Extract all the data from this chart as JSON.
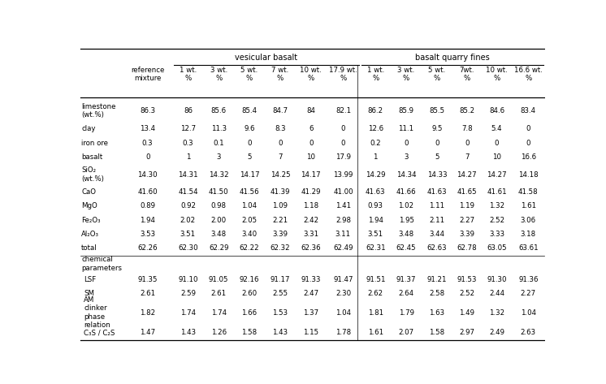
{
  "title_left": "vesicular basalt",
  "title_right": "basalt quarry fines",
  "col_headers": [
    "reference\nmixture",
    "1 wt.\n%",
    "3 wt.\n%",
    "5 wt.\n%",
    "7 wt.\n%",
    "10 wt.\n%",
    "17.9 wt.\n%",
    "1 wt.\n%",
    "3 wt.\n%",
    "5 wt.\n%",
    "7wt.\n%",
    "10 wt.\n%",
    "16.6 wt.\n%"
  ],
  "row_labels": [
    "limestone\n(wt.%)",
    "clay",
    "iron ore",
    "basalt",
    "SiO₂\n(wt.%)",
    "CaO",
    "MgO",
    "Fe₂O₃",
    "Al₂O₃",
    "total",
    "chemical\nparameters",
    "LSF",
    "SM",
    "AM\nclinker\nphase\nrelation",
    "C₃S / C₂S"
  ],
  "table_data": [
    [
      "86.3",
      "86",
      "85.6",
      "85.4",
      "84.7",
      "84",
      "82.1",
      "86.2",
      "85.9",
      "85.5",
      "85.2",
      "84.6",
      "83.4"
    ],
    [
      "13.4",
      "12.7",
      "11.3",
      "9.6",
      "8.3",
      "6",
      "0",
      "12.6",
      "11.1",
      "9.5",
      "7.8",
      "5.4",
      "0"
    ],
    [
      "0.3",
      "0.3",
      "0.1",
      "0",
      "0",
      "0",
      "0",
      "0.2",
      "0",
      "0",
      "0",
      "0",
      "0"
    ],
    [
      "0",
      "1",
      "3",
      "5",
      "7",
      "10",
      "17.9",
      "1",
      "3",
      "5",
      "7",
      "10",
      "16.6"
    ],
    [
      "14.30",
      "14.31",
      "14.32",
      "14.17",
      "14.25",
      "14.17",
      "13.99",
      "14.29",
      "14.34",
      "14.33",
      "14.27",
      "14.27",
      "14.18"
    ],
    [
      "41.60",
      "41.54",
      "41.50",
      "41.56",
      "41.39",
      "41.29",
      "41.00",
      "41.63",
      "41.66",
      "41.63",
      "41.65",
      "41.61",
      "41.58"
    ],
    [
      "0.89",
      "0.92",
      "0.98",
      "1.04",
      "1.09",
      "1.18",
      "1.41",
      "0.93",
      "1.02",
      "1.11",
      "1.19",
      "1.32",
      "1.61"
    ],
    [
      "1.94",
      "2.02",
      "2.00",
      "2.05",
      "2.21",
      "2.42",
      "2.98",
      "1.94",
      "1.95",
      "2.11",
      "2.27",
      "2.52",
      "3.06"
    ],
    [
      "3.53",
      "3.51",
      "3.48",
      "3.40",
      "3.39",
      "3.31",
      "3.11",
      "3.51",
      "3.48",
      "3.44",
      "3.39",
      "3.33",
      "3.18"
    ],
    [
      "62.26",
      "62.30",
      "62.29",
      "62.22",
      "62.32",
      "62.36",
      "62.49",
      "62.31",
      "62.45",
      "62.63",
      "62.78",
      "63.05",
      "63.61"
    ],
    [
      "",
      "",
      "",
      "",
      "",
      "",
      "",
      "",
      "",
      "",
      "",
      "",
      ""
    ],
    [
      "91.35",
      "91.10",
      "91.05",
      "92.16",
      "91.17",
      "91.33",
      "91.47",
      "91.51",
      "91.37",
      "91.21",
      "91.53",
      "91.30",
      "91.36"
    ],
    [
      "2.61",
      "2.59",
      "2.61",
      "2.60",
      "2.55",
      "2.47",
      "2.30",
      "2.62",
      "2.64",
      "2.58",
      "2.52",
      "2.44",
      "2.27"
    ],
    [
      "1.82",
      "1.74",
      "1.74",
      "1.66",
      "1.53",
      "1.37",
      "1.04",
      "1.81",
      "1.79",
      "1.63",
      "1.49",
      "1.32",
      "1.04"
    ],
    [
      "1.47",
      "1.43",
      "1.26",
      "1.58",
      "1.43",
      "1.15",
      "1.78",
      "1.61",
      "2.07",
      "1.58",
      "2.97",
      "2.49",
      "2.63"
    ]
  ],
  "section_header_rows": [
    10
  ],
  "indented_rows": [
    11,
    12,
    13,
    14
  ],
  "bg_color": "#ffffff",
  "text_color": "#000000",
  "font_size": 6.2,
  "header_font_size": 7.0,
  "col_widths_rel": [
    1.55,
    0.95,
    0.95,
    0.95,
    0.95,
    0.95,
    1.05,
    0.95,
    0.95,
    0.95,
    0.9,
    0.95,
    1.0
  ],
  "row_heights_rel": [
    1.55,
    1.0,
    1.0,
    1.0,
    1.45,
    1.0,
    1.0,
    1.0,
    1.0,
    1.0,
    1.2,
    1.0,
    1.0,
    1.7,
    1.1
  ]
}
